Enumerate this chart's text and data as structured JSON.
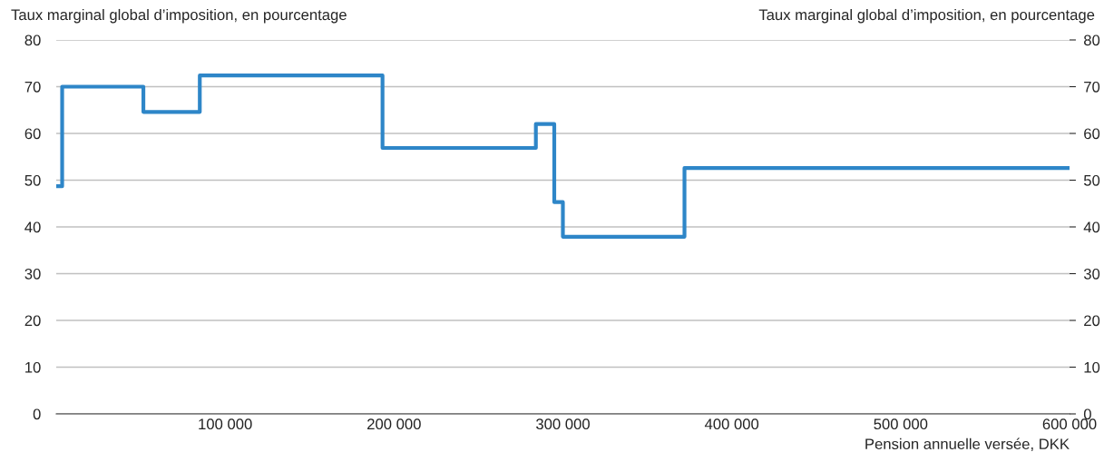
{
  "chart_data": {
    "type": "step",
    "ylabel": "Taux marginal global d’imposition, en pourcentage",
    "y2label": "Taux marginal global d’imposition, en pourcentage",
    "xlabel": "Pension annuelle versée, DKK",
    "x": [
      0,
      3500,
      51600,
      85000,
      193200,
      284000,
      294900,
      300000,
      372000,
      600000
    ],
    "series": [
      {
        "color": "#2e86c8",
        "values": [
          48.7,
          70,
          64.6,
          72.4,
          56.9,
          62,
          45.3,
          37.9,
          52.6,
          52.6
        ]
      }
    ],
    "xlim": [
      0,
      600000
    ],
    "xticks": [
      {
        "value": 100000,
        "label": "100 000"
      },
      {
        "value": 200000,
        "label": "200 000"
      },
      {
        "value": 300000,
        "label": "300 000"
      },
      {
        "value": 400000,
        "label": "400 000"
      },
      {
        "value": 500000,
        "label": "500 000"
      },
      {
        "value": 600000,
        "label": "600 000"
      }
    ],
    "ylim": [
      0,
      80
    ],
    "yticks": [
      0,
      10,
      20,
      30,
      40,
      50,
      60,
      70,
      80
    ],
    "y2lim": [
      0,
      80
    ],
    "y2ticks": [
      0,
      10,
      20,
      30,
      40,
      50,
      60,
      70,
      80
    ],
    "grid": "y",
    "line_style": "solid",
    "marker": "none"
  }
}
